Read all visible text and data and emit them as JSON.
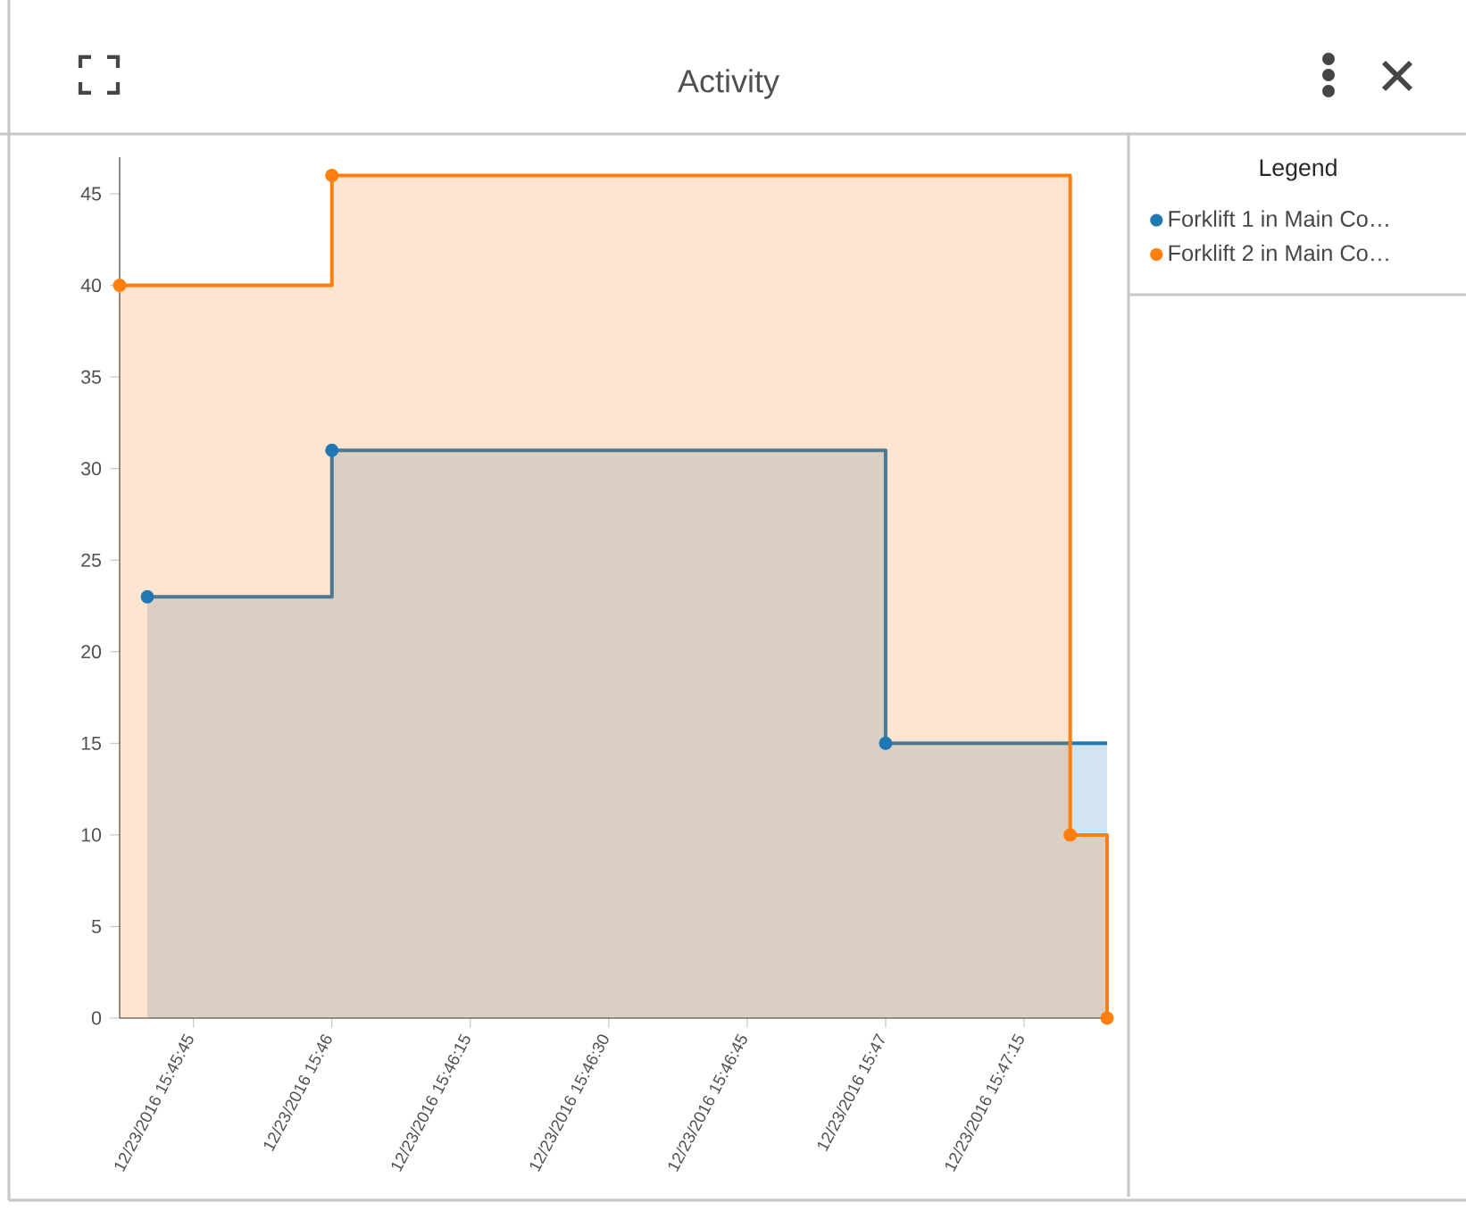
{
  "chart_data": {
    "type": "area",
    "title": "Activity",
    "legend_title": "Legend",
    "legend": "right",
    "xlim": [
      "2016-12-23T15:45:37",
      "2016-12-23T15:47:24"
    ],
    "xticks": [
      {
        "value": "2016-12-23T15:45:45",
        "label": "12/23/2016 15:45:45"
      },
      {
        "value": "2016-12-23T15:46:00",
        "label": "12/23/2016 15:46"
      },
      {
        "value": "2016-12-23T15:46:15",
        "label": "12/23/2016 15:46:15"
      },
      {
        "value": "2016-12-23T15:46:30",
        "label": "12/23/2016 15:46:30"
      },
      {
        "value": "2016-12-23T15:46:45",
        "label": "12/23/2016 15:46:45"
      },
      {
        "value": "2016-12-23T15:47:00",
        "label": "12/23/2016 15:47"
      },
      {
        "value": "2016-12-23T15:47:15",
        "label": "12/23/2016 15:47:15"
      }
    ],
    "ylim": [
      0,
      47
    ],
    "yticks": [
      0,
      5,
      10,
      15,
      20,
      25,
      30,
      35,
      40,
      45
    ],
    "series": [
      {
        "name": "Forklift 1 in Main Co…",
        "color": "#1f77b4",
        "marker": "none",
        "x": [
          "2016-12-23T15:45:40",
          "2016-12-23T15:46:00",
          "2016-12-23T15:46:00",
          "2016-12-23T15:47:00",
          "2016-12-23T15:47:00",
          "2016-12-23T15:47:24"
        ],
        "values": [
          23,
          23,
          31,
          31,
          15,
          15
        ]
      },
      {
        "name": "Forklift 2 in Main Co…",
        "color": "#ff7f0e",
        "marker": "none",
        "x": [
          "2016-12-23T15:45:37",
          "2016-12-23T15:46:00",
          "2016-12-23T15:46:00",
          "2016-12-23T15:47:20",
          "2016-12-23T15:47:20",
          "2016-12-23T15:47:24",
          "2016-12-23T15:47:24"
        ],
        "values": [
          40,
          40,
          46,
          46,
          10,
          10,
          0
        ]
      },
      {
        "type": "scatter",
        "marker": "circle",
        "color": "#ff7f0e",
        "x": [
          "2016-12-23T15:45:37",
          "2016-12-23T15:46:00",
          "2016-12-23T15:47:20",
          "2016-12-23T15:47:24"
        ],
        "values": [
          40,
          46,
          10,
          0
        ]
      },
      {
        "type": "scatter",
        "marker": "circle",
        "color": "#1f77b4",
        "x": [
          "2016-12-23T15:45:40",
          "2016-12-23T15:46:00",
          "2016-12-23T15:47:00"
        ],
        "values": [
          23,
          31,
          15
        ]
      }
    ]
  }
}
